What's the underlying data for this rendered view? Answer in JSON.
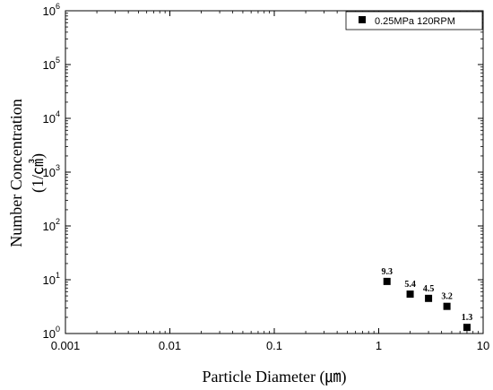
{
  "chart_data": {
    "type": "scatter",
    "xlabel": "Particle Diameter (㎛)",
    "ylabel_line1": "Number Concentration",
    "ylabel_line2": "(1/㎤)",
    "x_scale": "log",
    "y_scale": "log",
    "xlim": [
      0.001,
      10
    ],
    "ylim": [
      1,
      1000000
    ],
    "x_ticks": [
      "0.001",
      "0.01",
      "0.1",
      "1",
      "10"
    ],
    "y_tick_exponents": [
      "0",
      "1",
      "2",
      "3",
      "4",
      "5",
      "6"
    ],
    "y_tick_base": "10",
    "grid": false,
    "legend_position": "top-right",
    "series": [
      {
        "name": "0.25MPa 120RPM",
        "color": "#000000",
        "marker": "square",
        "points": [
          {
            "x": 1.2,
            "y": 9.3,
            "label": "9.3"
          },
          {
            "x": 2.0,
            "y": 5.4,
            "label": "5.4"
          },
          {
            "x": 3.0,
            "y": 4.5,
            "label": "4.5"
          },
          {
            "x": 4.5,
            "y": 3.2,
            "label": "3.2"
          },
          {
            "x": 7.0,
            "y": 1.3,
            "label": "1.3"
          }
        ]
      }
    ]
  }
}
